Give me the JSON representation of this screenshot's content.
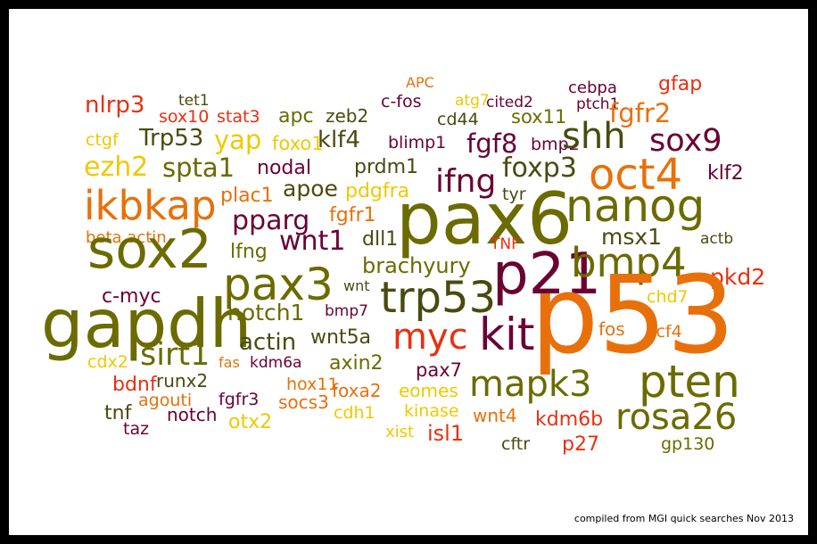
{
  "colors": {
    "olive": "#6b6b00",
    "oliveLight": "#7d7d10",
    "maroon": "#6b0033",
    "orange": "#e8700a",
    "red": "#e83010",
    "gold": "#f0c800",
    "darkOlive": "#4a4a10"
  },
  "words": [
    {
      "t": "APC",
      "c": "orange"
    },
    {
      "t": "gfap",
      "c": "red"
    },
    {
      "t": "cebpa",
      "c": "maroon"
    },
    {
      "t": "nlrp3",
      "c": "red"
    },
    {
      "t": "tet1",
      "c": "darkOlive"
    },
    {
      "t": "c-fos",
      "c": "maroon"
    },
    {
      "t": "atg7",
      "c": "gold"
    },
    {
      "t": "cited2",
      "c": "maroon"
    },
    {
      "t": "ptch1",
      "c": "maroon"
    },
    {
      "t": "sox10",
      "c": "red"
    },
    {
      "t": "stat3",
      "c": "red"
    },
    {
      "t": "apc",
      "c": "olive"
    },
    {
      "t": "zeb2",
      "c": "darkOlive"
    },
    {
      "t": "cd44",
      "c": "darkOlive"
    },
    {
      "t": "sox11",
      "c": "olive"
    },
    {
      "t": "fgfr2",
      "c": "orange"
    },
    {
      "t": "ctgf",
      "c": "gold"
    },
    {
      "t": "Trp53",
      "c": "darkOlive"
    },
    {
      "t": "yap",
      "c": "gold"
    },
    {
      "t": "foxo1",
      "c": "gold"
    },
    {
      "t": "klf4",
      "c": "darkOlive"
    },
    {
      "t": "blimp1",
      "c": "maroon"
    },
    {
      "t": "fgf8",
      "c": "maroon"
    },
    {
      "t": "bmp2",
      "c": "maroon"
    },
    {
      "t": "shh",
      "c": "darkOlive"
    },
    {
      "t": "sox9",
      "c": "maroon"
    },
    {
      "t": "ezh2",
      "c": "gold"
    },
    {
      "t": "spta1",
      "c": "olive"
    },
    {
      "t": "nodal",
      "c": "maroon"
    },
    {
      "t": "prdm1",
      "c": "darkOlive"
    },
    {
      "t": "foxp3",
      "c": "darkOlive"
    },
    {
      "t": "oct4",
      "c": "orange"
    },
    {
      "t": "klf2",
      "c": "maroon"
    },
    {
      "t": "ikbkap",
      "c": "orange"
    },
    {
      "t": "plac1",
      "c": "orange"
    },
    {
      "t": "apoe",
      "c": "darkOlive"
    },
    {
      "t": "pdgfra",
      "c": "gold"
    },
    {
      "t": "ifng",
      "c": "maroon"
    },
    {
      "t": "tyr",
      "c": "darkOlive"
    },
    {
      "t": "pax6",
      "c": "olive"
    },
    {
      "t": "nanog",
      "c": "olive"
    },
    {
      "t": "pparg",
      "c": "maroon"
    },
    {
      "t": "fgfr1",
      "c": "orange"
    },
    {
      "t": "beta actin",
      "c": "orange"
    },
    {
      "t": "sox2",
      "c": "olive"
    },
    {
      "t": "lfng",
      "c": "olive"
    },
    {
      "t": "wnt1",
      "c": "maroon"
    },
    {
      "t": "dll1",
      "c": "darkOlive"
    },
    {
      "t": "TNF",
      "c": "red"
    },
    {
      "t": "msx1",
      "c": "darkOlive"
    },
    {
      "t": "actb",
      "c": "darkOlive"
    },
    {
      "t": "brachyury",
      "c": "olive"
    },
    {
      "t": "p21",
      "c": "maroon"
    },
    {
      "t": "bmp4",
      "c": "olive"
    },
    {
      "t": "pax3",
      "c": "olive"
    },
    {
      "t": "wnt",
      "c": "darkOlive"
    },
    {
      "t": "pkd2",
      "c": "red"
    },
    {
      "t": "c-myc",
      "c": "maroon"
    },
    {
      "t": "trp53",
      "c": "darkOlive"
    },
    {
      "t": "chd7",
      "c": "gold"
    },
    {
      "t": "gapdh",
      "c": "olive"
    },
    {
      "t": "notch1",
      "c": "olive"
    },
    {
      "t": "bmp7",
      "c": "maroon"
    },
    {
      "t": "p53",
      "c": "orange"
    },
    {
      "t": "actin",
      "c": "darkOlive"
    },
    {
      "t": "wnt5a",
      "c": "darkOlive"
    },
    {
      "t": "myc",
      "c": "red"
    },
    {
      "t": "kit",
      "c": "maroon"
    },
    {
      "t": "fos",
      "c": "orange"
    },
    {
      "t": "tcf4",
      "c": "orange"
    },
    {
      "t": "sirt1",
      "c": "olive"
    },
    {
      "t": "cdx2",
      "c": "gold"
    },
    {
      "t": "fas",
      "c": "orange"
    },
    {
      "t": "kdm6a",
      "c": "maroon"
    },
    {
      "t": "axin2",
      "c": "olive"
    },
    {
      "t": "pax7",
      "c": "maroon"
    },
    {
      "t": "bdnf",
      "c": "red"
    },
    {
      "t": "runx2",
      "c": "darkOlive"
    },
    {
      "t": "hox11",
      "c": "orange"
    },
    {
      "t": "foxa2",
      "c": "orange"
    },
    {
      "t": "eomes",
      "c": "gold"
    },
    {
      "t": "mapk3",
      "c": "olive"
    },
    {
      "t": "pten",
      "c": "olive"
    },
    {
      "t": "agouti",
      "c": "orange"
    },
    {
      "t": "fgfr3",
      "c": "maroon"
    },
    {
      "t": "socs3",
      "c": "orange"
    },
    {
      "t": "tnf",
      "c": "darkOlive"
    },
    {
      "t": "notch",
      "c": "maroon"
    },
    {
      "t": "cdh1",
      "c": "gold"
    },
    {
      "t": "kinase",
      "c": "gold"
    },
    {
      "t": "wnt4",
      "c": "orange"
    },
    {
      "t": "kdm6b",
      "c": "red"
    },
    {
      "t": "rosa26",
      "c": "olive"
    },
    {
      "t": "otx2",
      "c": "gold"
    },
    {
      "t": "taz",
      "c": "maroon"
    },
    {
      "t": "xist",
      "c": "gold"
    },
    {
      "t": "isl1",
      "c": "red"
    },
    {
      "t": "cftr",
      "c": "darkOlive"
    },
    {
      "t": "p27",
      "c": "red"
    },
    {
      "t": "gp130",
      "c": "olive"
    }
  ],
  "credit": "compiled from MGI quick searches Nov 2013"
}
